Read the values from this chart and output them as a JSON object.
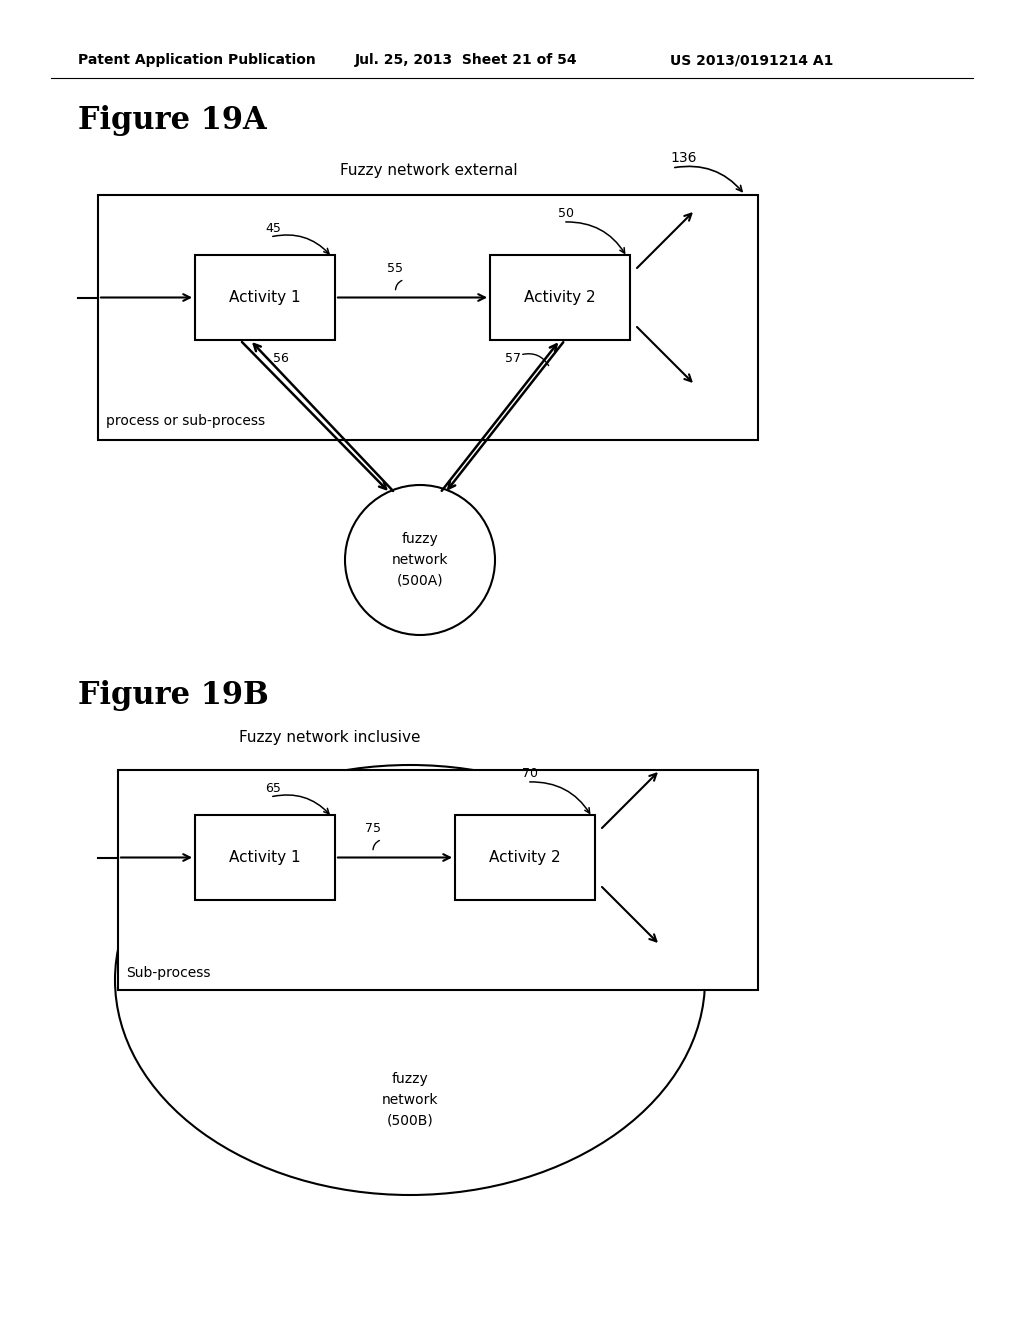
{
  "bg_color": "#ffffff",
  "header_text": "Patent Application Publication",
  "header_date": "Jul. 25, 2013  Sheet 21 of 54",
  "header_patent": "US 2013/0191214 A1",
  "fig_a_title": "Figure 19A",
  "fig_b_title": "Figure 19B",
  "fig_a_label": "Fuzzy network external",
  "fig_b_label": "Fuzzy network inclusive",
  "fig_a_number": "136",
  "fig_b_subprocess": "Sub-process",
  "fig_a_subprocess": "process or sub-process",
  "act1_label": "Activity 1",
  "act2_label": "Activity 2",
  "fuzzy_a_label": "fuzzy\nnetwork\n(500A)",
  "fuzzy_b_label": "fuzzy\nnetwork\n(500B)",
  "num_45": "45",
  "num_50": "50",
  "num_55": "55",
  "num_56": "56",
  "num_57": "57",
  "num_65": "65",
  "num_70": "70",
  "num_75": "75"
}
